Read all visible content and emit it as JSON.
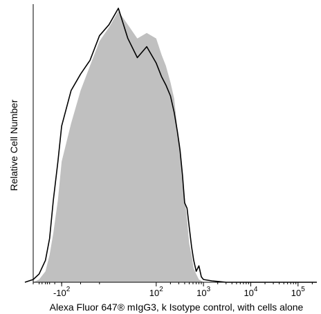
{
  "chart_data": {
    "type": "area",
    "xlabel": "Alexa Fluor 647® mIgG3, k Isotype control, with cells alone",
    "ylabel": "Relative Cell Number",
    "x_scale": "biexponential",
    "grid": false,
    "x_ticks": [
      {
        "value": -100,
        "base": "-10",
        "exp": "2"
      },
      {
        "value": 100,
        "base": "10",
        "exp": "2"
      },
      {
        "value": 1000,
        "base": "10",
        "exp": "3"
      },
      {
        "value": 10000,
        "base": "10",
        "exp": "4"
      },
      {
        "value": 100000,
        "base": "10",
        "exp": "5"
      }
    ],
    "xlim": [
      -400,
      250000
    ],
    "ylim": [
      0,
      100
    ],
    "series": [
      {
        "style": "filled-gray",
        "color": "#c0c0c0",
        "x": [
          -400,
          -300,
          -220,
          -180,
          -150,
          -120,
          -100,
          -80,
          -60,
          -40,
          -20,
          0,
          20,
          40,
          60,
          80,
          100,
          130,
          160,
          200,
          240,
          280,
          320,
          360,
          400,
          450,
          500,
          560,
          620,
          700,
          800,
          900,
          1000
        ],
        "y": [
          0,
          1,
          4,
          10,
          18,
          30,
          44,
          58,
          70,
          79,
          88,
          93,
          99,
          94,
          89,
          91,
          89,
          83,
          79,
          73,
          67,
          56,
          50,
          41,
          31,
          23,
          14,
          10,
          5,
          3,
          1,
          0.5,
          0
        ]
      },
      {
        "style": "black-outline",
        "color": "#000000",
        "x": [
          -600,
          -400,
          -300,
          -220,
          -180,
          -150,
          -120,
          -100,
          -80,
          -60,
          -40,
          -20,
          0,
          20,
          40,
          60,
          80,
          100,
          130,
          160,
          200,
          240,
          280,
          320,
          360,
          400,
          450,
          500,
          560,
          620,
          700,
          800,
          900,
          1000,
          1500,
          2000,
          3000
        ],
        "y": [
          0,
          1,
          3,
          8,
          16,
          30,
          44,
          57,
          70,
          76,
          81,
          90,
          94,
          100,
          89,
          82,
          86,
          80,
          75,
          72,
          68,
          62,
          55,
          48,
          39,
          29,
          27,
          20,
          13,
          8,
          4,
          6,
          2,
          1,
          0.5,
          0.3,
          0
        ]
      }
    ]
  }
}
